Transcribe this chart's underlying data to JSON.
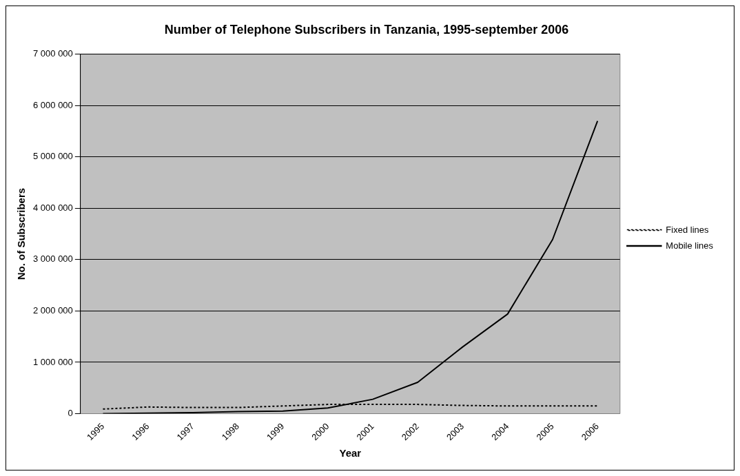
{
  "chart_data": {
    "type": "line",
    "title": "Number of Telephone Subscribers in Tanzania, 1995-september 2006",
    "xlabel": "Year",
    "ylabel": "No. of Subscribers",
    "categories": [
      "1995",
      "1996",
      "1997",
      "1998",
      "1999",
      "2000",
      "2001",
      "2002",
      "2003",
      "2004",
      "2005",
      "2006"
    ],
    "series": [
      {
        "name": "Fixed lines",
        "color": "#000000",
        "line_style": "dotted",
        "values": [
          90000,
          130000,
          120000,
          120000,
          150000,
          180000,
          180000,
          180000,
          160000,
          150000,
          150000,
          150000
        ]
      },
      {
        "name": "Mobile lines",
        "color": "#000000",
        "line_style": "solid",
        "values": [
          0,
          10000,
          20000,
          40000,
          50000,
          110000,
          280000,
          610000,
          1300000,
          1940000,
          3390000,
          5700000
        ]
      }
    ],
    "ylim": [
      0,
      7000000
    ],
    "yticks": [
      0,
      {
        "value": 1000000,
        "label": "1 000 000"
      },
      {
        "value": 2000000,
        "label": "2 000 000"
      },
      {
        "value": 3000000,
        "label": "3 000 000"
      },
      {
        "value": 4000000,
        "label": "4 000 000"
      },
      {
        "value": 5000000,
        "label": "5 000 000"
      },
      {
        "value": 6000000,
        "label": "6 000 000"
      },
      {
        "value": 7000000,
        "label": "7 000 000"
      }
    ],
    "grid": "y",
    "legend": "right",
    "marker": "none"
  }
}
